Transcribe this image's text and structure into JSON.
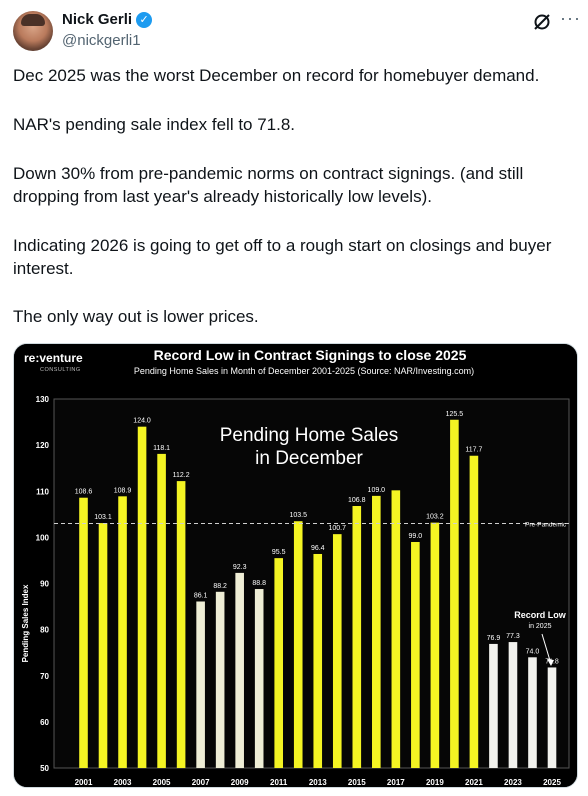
{
  "post": {
    "author_name": "Nick Gerli",
    "author_handle": "@nickgerli1",
    "paragraphs": [
      "Dec 2025 was the worst December on record for homebuyer demand.",
      "NAR's pending sale index fell to 71.8.",
      "Down 30% from pre-pandemic norms on contract signings. (and still dropping from last year's already historically low levels).",
      "Indicating 2026 is going to get off to a rough start on closings and buyer interest.",
      "The only way out is lower prices."
    ]
  },
  "icons": {
    "verified": "verified-badge-icon",
    "grok": "grok-icon",
    "more": "more-options-icon"
  },
  "colors": {
    "bar_highlight": "#f4f423",
    "bar_muted": "#efeed6",
    "bar_recent": "#f2f2ee",
    "chart_bg": "#000000",
    "accent": "#1d9bf0"
  },
  "chart_data": {
    "type": "bar",
    "title": "Record Low in Contract Signings to close 2025",
    "subtitle": "Pending Home Sales in Month of December 2001-2025 (Source: NAR/Investing.com)",
    "logo": "re:venture",
    "logo_sub": "CONSULTING",
    "inner_title": "Pending Home Sales\nin December",
    "ylabel": "Pending Sales Index",
    "ylim": [
      50,
      130
    ],
    "yticks": [
      50,
      60,
      70,
      80,
      90,
      100,
      110,
      120,
      130
    ],
    "grid": false,
    "categories": [
      "2001",
      "2002",
      "2003",
      "2004",
      "2005",
      "2006",
      "2007",
      "2008",
      "2009",
      "2010",
      "2011",
      "2012",
      "2013",
      "2014",
      "2015",
      "2016",
      "2017",
      "2018",
      "2019",
      "2020",
      "2021",
      "2022",
      "2023",
      "2024",
      "2025"
    ],
    "values": [
      108.6,
      103.1,
      108.9,
      124.0,
      118.1,
      112.2,
      86.1,
      88.2,
      92.3,
      88.8,
      95.5,
      103.5,
      96.4,
      100.7,
      106.8,
      109.0,
      110.2,
      99.0,
      103.2,
      125.5,
      117.7,
      76.9,
      77.3,
      74.0,
      71.8
    ],
    "value_labels": [
      "108.6",
      "103.1",
      "108.9",
      "124.0",
      "118.1",
      "112.2",
      "86.1",
      "88.2",
      "92.3",
      "88.8",
      "95.5",
      "103.5",
      "96.4",
      "100.7",
      "106.8",
      "109.0",
      "",
      "99.0",
      "103.2",
      "125.5",
      "117.7",
      "76.9",
      "77.3",
      "74.0",
      "71.8"
    ],
    "bar_groups": [
      "hi",
      "hi",
      "hi",
      "hi",
      "hi",
      "hi",
      "mu",
      "mu",
      "mu",
      "mu",
      "hi",
      "hi",
      "hi",
      "hi",
      "hi",
      "hi",
      "hi",
      "hi",
      "hi",
      "hi",
      "hi",
      "re",
      "re",
      "re",
      "re"
    ],
    "x_tick_labels": [
      "2001",
      "2003",
      "2005",
      "2007",
      "2009",
      "2011",
      "2013",
      "2015",
      "2017",
      "2019",
      "2021",
      "2023",
      "2025"
    ],
    "reference_line": {
      "label": "Pre-Pandemic",
      "value": 103
    },
    "annotation": {
      "title": "Record Low",
      "subtitle": "in 2025"
    }
  }
}
